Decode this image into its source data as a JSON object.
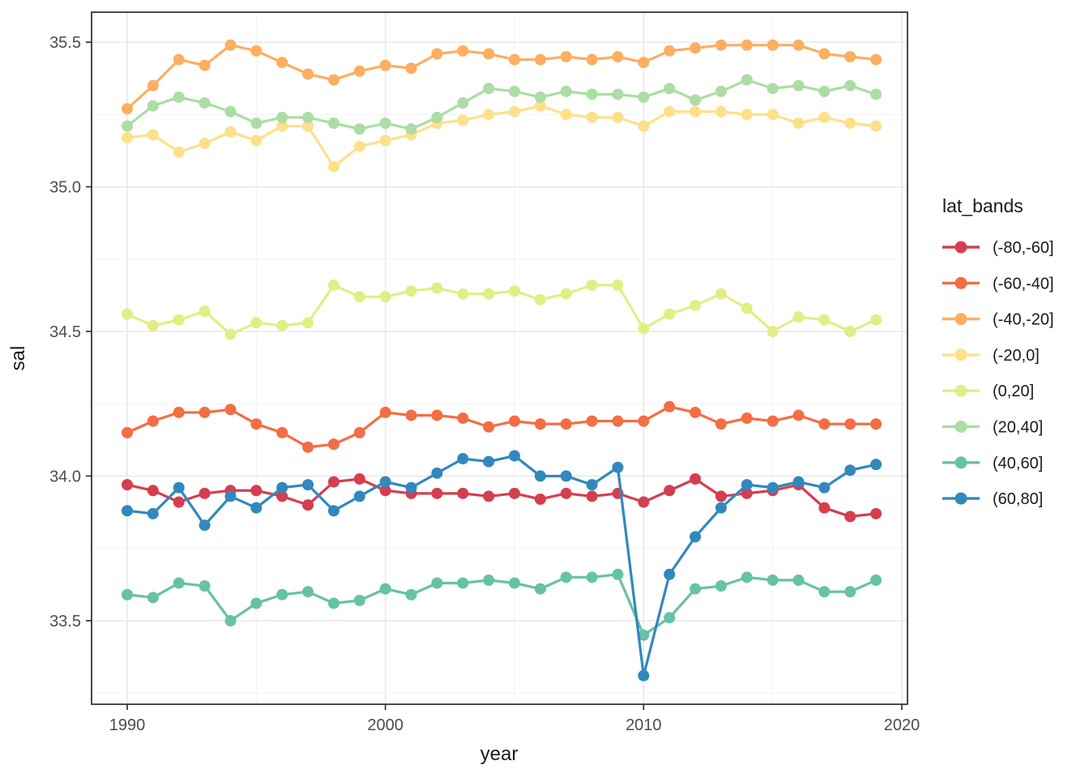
{
  "chart_data": {
    "type": "line",
    "title": "",
    "xlabel": "year",
    "ylabel": "sal",
    "legend_title": "lat_bands",
    "legend_position": "right",
    "grid": "on",
    "xlim": [
      1988.62,
      2020.22
    ],
    "ylim": [
      33.211,
      35.604
    ],
    "x_major_ticks": [
      1990,
      2000,
      2010,
      2020
    ],
    "x_tick_labels": [
      "1990",
      "2000",
      "2010",
      "2020"
    ],
    "x_minor_gridlines": [
      1995,
      2005,
      2015
    ],
    "y_major_ticks": [
      33.5,
      34.0,
      34.5,
      35.0,
      35.5
    ],
    "y_tick_labels": [
      "33.5",
      "34.0",
      "34.5",
      "35.0",
      "35.5"
    ],
    "y_minor_gridlines": [
      33.25,
      33.75,
      34.25,
      34.75,
      35.25
    ],
    "x": [
      1990,
      1991,
      1992,
      1993,
      1994,
      1995,
      1996,
      1997,
      1998,
      1999,
      2000,
      2001,
      2002,
      2003,
      2004,
      2005,
      2006,
      2007,
      2008,
      2009,
      2010,
      2011,
      2012,
      2013,
      2014,
      2015,
      2016,
      2017,
      2018,
      2019
    ],
    "series": [
      {
        "name": "(-80,-60]",
        "color": "#D53E4F",
        "values": [
          33.97,
          33.95,
          33.91,
          33.94,
          33.95,
          33.95,
          33.93,
          33.9,
          33.98,
          33.99,
          33.95,
          33.94,
          33.94,
          33.94,
          33.93,
          33.94,
          33.92,
          33.94,
          33.93,
          33.94,
          33.91,
          33.95,
          33.99,
          33.93,
          33.94,
          33.95,
          33.97,
          33.89,
          33.86,
          33.87
        ]
      },
      {
        "name": "(-60,-40]",
        "color": "#F46D43",
        "values": [
          34.15,
          34.19,
          34.22,
          34.22,
          34.23,
          34.18,
          34.15,
          34.1,
          34.11,
          34.15,
          34.22,
          34.21,
          34.21,
          34.2,
          34.17,
          34.19,
          34.18,
          34.18,
          34.19,
          34.19,
          34.19,
          34.24,
          34.22,
          34.18,
          34.2,
          34.19,
          34.21,
          34.18,
          34.18,
          34.18
        ]
      },
      {
        "name": "(-40,-20]",
        "color": "#FDAE61",
        "values": [
          35.27,
          35.35,
          35.44,
          35.42,
          35.49,
          35.47,
          35.43,
          35.39,
          35.37,
          35.4,
          35.42,
          35.41,
          35.46,
          35.47,
          35.46,
          35.44,
          35.44,
          35.45,
          35.44,
          35.45,
          35.43,
          35.47,
          35.48,
          35.49,
          35.49,
          35.49,
          35.49,
          35.46,
          35.45,
          35.44
        ]
      },
      {
        "name": "(-20,0]",
        "color": "#FEE08B",
        "values": [
          35.17,
          35.18,
          35.12,
          35.15,
          35.19,
          35.16,
          35.21,
          35.21,
          35.07,
          35.14,
          35.16,
          35.18,
          35.22,
          35.23,
          35.25,
          35.26,
          35.28,
          35.25,
          35.24,
          35.24,
          35.21,
          35.26,
          35.26,
          35.26,
          35.25,
          35.25,
          35.22,
          35.24,
          35.22,
          35.21
        ]
      },
      {
        "name": "(0,20]",
        "color": "#E2EE85",
        "values": [
          34.56,
          34.52,
          34.54,
          34.57,
          34.49,
          34.53,
          34.52,
          34.53,
          34.66,
          34.62,
          34.62,
          34.64,
          34.65,
          34.63,
          34.63,
          34.64,
          34.61,
          34.63,
          34.66,
          34.66,
          34.51,
          34.56,
          34.59,
          34.63,
          34.58,
          34.5,
          34.55,
          34.54,
          34.5,
          34.54
        ]
      },
      {
        "name": "(20,40]",
        "color": "#ABDDA4",
        "values": [
          35.21,
          35.28,
          35.31,
          35.29,
          35.26,
          35.22,
          35.24,
          35.24,
          35.22,
          35.2,
          35.22,
          35.2,
          35.24,
          35.29,
          35.34,
          35.33,
          35.31,
          35.33,
          35.32,
          35.32,
          35.31,
          35.34,
          35.3,
          35.33,
          35.37,
          35.34,
          35.35,
          35.33,
          35.35,
          35.32
        ]
      },
      {
        "name": "(40,60]",
        "color": "#66C2A5",
        "values": [
          33.59,
          33.58,
          33.63,
          33.62,
          33.5,
          33.56,
          33.59,
          33.6,
          33.56,
          33.57,
          33.61,
          33.59,
          33.63,
          33.63,
          33.64,
          33.63,
          33.61,
          33.65,
          33.65,
          33.66,
          33.45,
          33.51,
          33.61,
          33.62,
          33.65,
          33.64,
          33.64,
          33.6,
          33.6,
          33.64
        ]
      },
      {
        "name": "(60,80]",
        "color": "#3288BD",
        "values": [
          33.88,
          33.87,
          33.96,
          33.83,
          33.93,
          33.89,
          33.96,
          33.97,
          33.88,
          33.93,
          33.98,
          33.96,
          34.01,
          34.06,
          34.05,
          34.07,
          34.0,
          34.0,
          33.97,
          34.03,
          33.31,
          33.66,
          33.79,
          33.89,
          33.97,
          33.96,
          33.98,
          33.96,
          34.02,
          34.04
        ]
      }
    ],
    "style": {
      "panel_border_color": "#2b2b2b",
      "grid_major_color": "#e8e8e8",
      "grid_minor_color": "#f3f3f3",
      "tick_label_color": "#4d4d4d",
      "axis_title_color": "#1a1a1a",
      "legend_text_color": "#1a1a1a"
    }
  }
}
